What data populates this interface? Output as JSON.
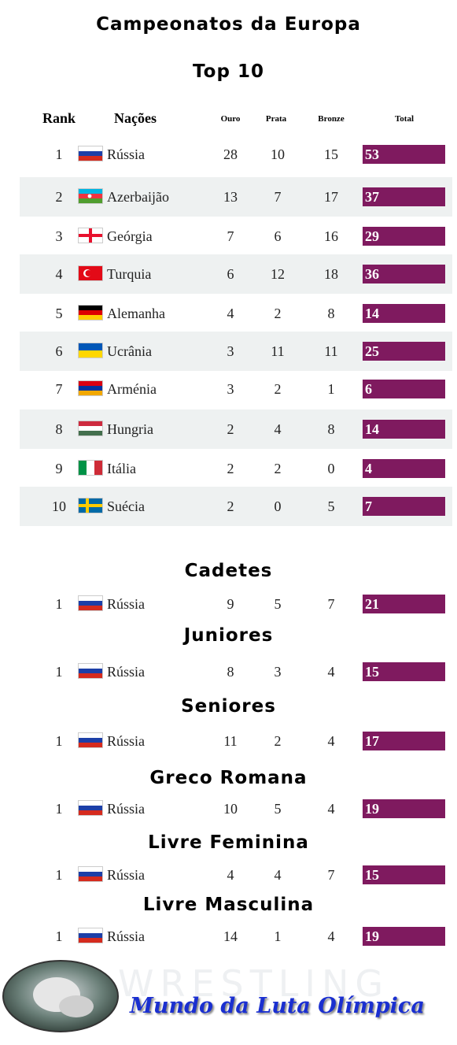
{
  "title": "Campeonatos da Europa",
  "subtitle": "Top 10",
  "table": {
    "headers": [
      "Rank",
      "Nações",
      "Ouro",
      "Prata",
      "Bronze",
      "Total"
    ],
    "rows": [
      [
        "1",
        "Rússia",
        "28",
        "10",
        "15",
        "53"
      ],
      [
        "2",
        "Azerbaijão",
        "13",
        "7",
        "17",
        "37"
      ],
      [
        "3",
        "Geórgia",
        "7",
        "6",
        "16",
        "29"
      ],
      [
        "4",
        "Turquia",
        "6",
        "12",
        "18",
        "36"
      ],
      [
        "5",
        "Alemanha",
        "4",
        "2",
        "8",
        "14"
      ],
      [
        "6",
        "Ucrânia",
        "3",
        "11",
        "11",
        "25"
      ],
      [
        "7",
        "Arménia",
        "3",
        "2",
        "1",
        "6"
      ],
      [
        "8",
        "Hungria",
        "2",
        "4",
        "8",
        "14"
      ],
      [
        "9",
        "Itália",
        "2",
        "2",
        "0",
        "4"
      ],
      [
        "10",
        "Suécia",
        "2",
        "0",
        "5",
        "7"
      ]
    ]
  },
  "sections": [
    {
      "title": "Cadetes",
      "row": [
        "1",
        "Rússia",
        "9",
        "5",
        "7",
        "21"
      ]
    },
    {
      "title": "Juniores",
      "row": [
        "1",
        "Rússia",
        "8",
        "3",
        "4",
        "15"
      ]
    },
    {
      "title": "Seniores",
      "row": [
        "1",
        "Rússia",
        "11",
        "2",
        "4",
        "17"
      ]
    },
    {
      "title": "Greco Romana",
      "row": [
        "1",
        "Rússia",
        "10",
        "5",
        "4",
        "19"
      ]
    },
    {
      "title": "Livre Feminina",
      "row": [
        "1",
        "Rússia",
        "4",
        "4",
        "7",
        "15"
      ]
    },
    {
      "title": "Livre Masculina",
      "row": [
        "1",
        "Rússia",
        "14",
        "1",
        "4",
        "19"
      ]
    }
  ],
  "footer": {
    "watermark": "WRESTLING",
    "brand": "Mundo da Luta Olímpica"
  }
}
